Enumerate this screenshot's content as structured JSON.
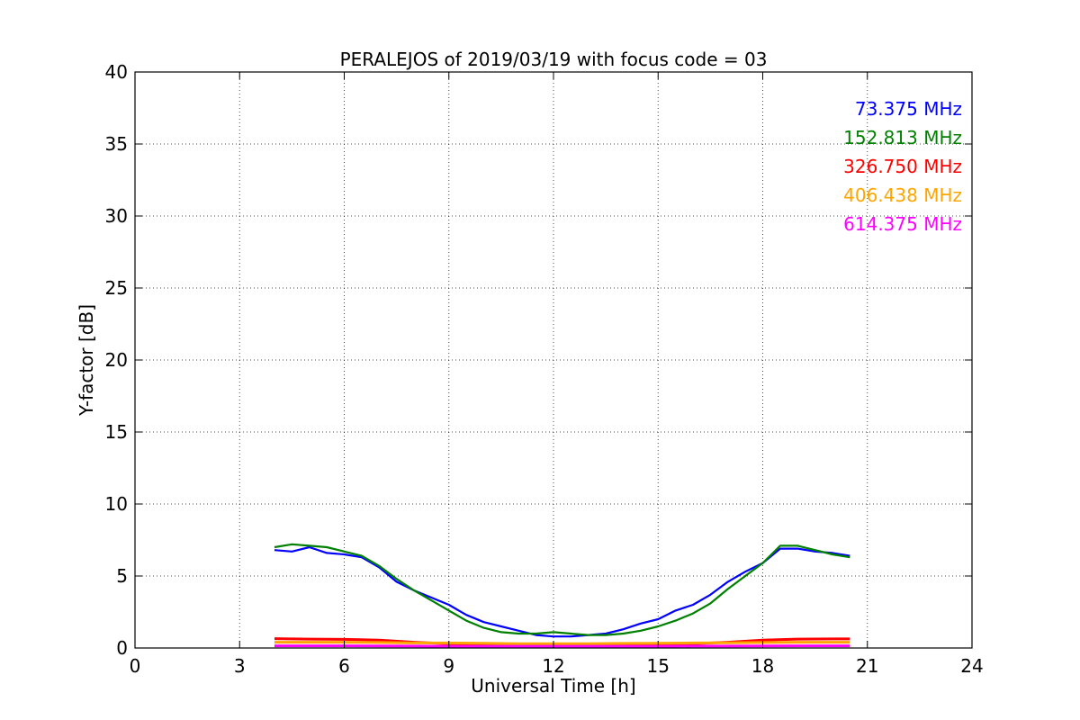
{
  "chart_data": {
    "type": "line",
    "title": "PERALEJOS of 2019/03/19 with focus code = 03",
    "xlabel": "Universal Time [h]",
    "ylabel": "Y-factor [dB]",
    "xlim": [
      0,
      24
    ],
    "ylim": [
      0,
      40
    ],
    "xticks": [
      0,
      3,
      6,
      9,
      12,
      15,
      18,
      21,
      24
    ],
    "yticks": [
      0,
      5,
      10,
      15,
      20,
      25,
      30,
      35,
      40
    ],
    "grid": true,
    "legend_position": "top-right",
    "series": [
      {
        "name": "73.375 MHz",
        "color": "#0000ff",
        "x": [
          4.0,
          4.5,
          5.0,
          5.5,
          6.0,
          6.5,
          7.0,
          7.5,
          8.0,
          8.5,
          9.0,
          9.5,
          10.0,
          10.5,
          11.0,
          11.5,
          12.0,
          12.5,
          13.0,
          13.5,
          14.0,
          14.5,
          15.0,
          15.5,
          16.0,
          16.5,
          17.0,
          17.5,
          18.0,
          18.5,
          19.0,
          19.5,
          20.0,
          20.5
        ],
        "y": [
          6.8,
          6.7,
          7.0,
          6.6,
          6.5,
          6.3,
          5.6,
          4.6,
          4.0,
          3.5,
          3.0,
          2.3,
          1.8,
          1.5,
          1.2,
          0.9,
          0.8,
          0.8,
          0.9,
          1.0,
          1.3,
          1.7,
          2.0,
          2.6,
          3.0,
          3.7,
          4.6,
          5.3,
          5.9,
          6.9,
          6.9,
          6.7,
          6.6,
          6.4
        ]
      },
      {
        "name": "152.813 MHz",
        "color": "#008000",
        "x": [
          4.0,
          4.5,
          5.0,
          5.5,
          6.0,
          6.5,
          7.0,
          7.5,
          8.0,
          8.5,
          9.0,
          9.5,
          10.0,
          10.5,
          11.0,
          11.5,
          12.0,
          12.5,
          13.0,
          13.5,
          14.0,
          14.5,
          15.0,
          15.5,
          16.0,
          16.5,
          17.0,
          17.5,
          18.0,
          18.5,
          19.0,
          19.5,
          20.0,
          20.5
        ],
        "y": [
          7.0,
          7.2,
          7.1,
          7.0,
          6.7,
          6.4,
          5.7,
          4.8,
          4.0,
          3.3,
          2.6,
          1.9,
          1.4,
          1.1,
          1.0,
          1.0,
          1.1,
          1.0,
          0.9,
          0.9,
          1.0,
          1.2,
          1.5,
          1.9,
          2.4,
          3.1,
          4.1,
          5.0,
          5.9,
          7.1,
          7.1,
          6.8,
          6.5,
          6.3
        ]
      },
      {
        "name": "326.750 MHz",
        "color": "#ff0000",
        "x": [
          4.0,
          5.0,
          6.0,
          7.0,
          8.0,
          9.0,
          10.0,
          11.0,
          12.0,
          13.0,
          14.0,
          15.0,
          16.0,
          17.0,
          18.0,
          19.0,
          20.0,
          20.5
        ],
        "y": [
          0.65,
          0.62,
          0.6,
          0.55,
          0.4,
          0.3,
          0.25,
          0.22,
          0.2,
          0.2,
          0.22,
          0.25,
          0.3,
          0.4,
          0.55,
          0.62,
          0.63,
          0.63
        ]
      },
      {
        "name": "406.438 MHz",
        "color": "#ffa500",
        "x": [
          4.0,
          5.0,
          6.0,
          7.0,
          8.0,
          9.0,
          10.0,
          11.0,
          12.0,
          13.0,
          14.0,
          15.0,
          16.0,
          17.0,
          18.0,
          19.0,
          20.0,
          20.5
        ],
        "y": [
          0.4,
          0.4,
          0.4,
          0.38,
          0.35,
          0.35,
          0.33,
          0.3,
          0.3,
          0.3,
          0.32,
          0.33,
          0.35,
          0.36,
          0.38,
          0.4,
          0.4,
          0.4
        ]
      },
      {
        "name": "614.375 MHz",
        "color": "#ff00ff",
        "x": [
          4.0,
          5.0,
          6.0,
          7.0,
          8.0,
          9.0,
          10.0,
          11.0,
          12.0,
          13.0,
          14.0,
          15.0,
          16.0,
          17.0,
          18.0,
          19.0,
          20.0,
          20.5
        ],
        "y": [
          0.15,
          0.15,
          0.15,
          0.14,
          0.13,
          0.12,
          0.12,
          0.12,
          0.12,
          0.12,
          0.12,
          0.12,
          0.13,
          0.13,
          0.14,
          0.15,
          0.15,
          0.15
        ]
      }
    ]
  }
}
